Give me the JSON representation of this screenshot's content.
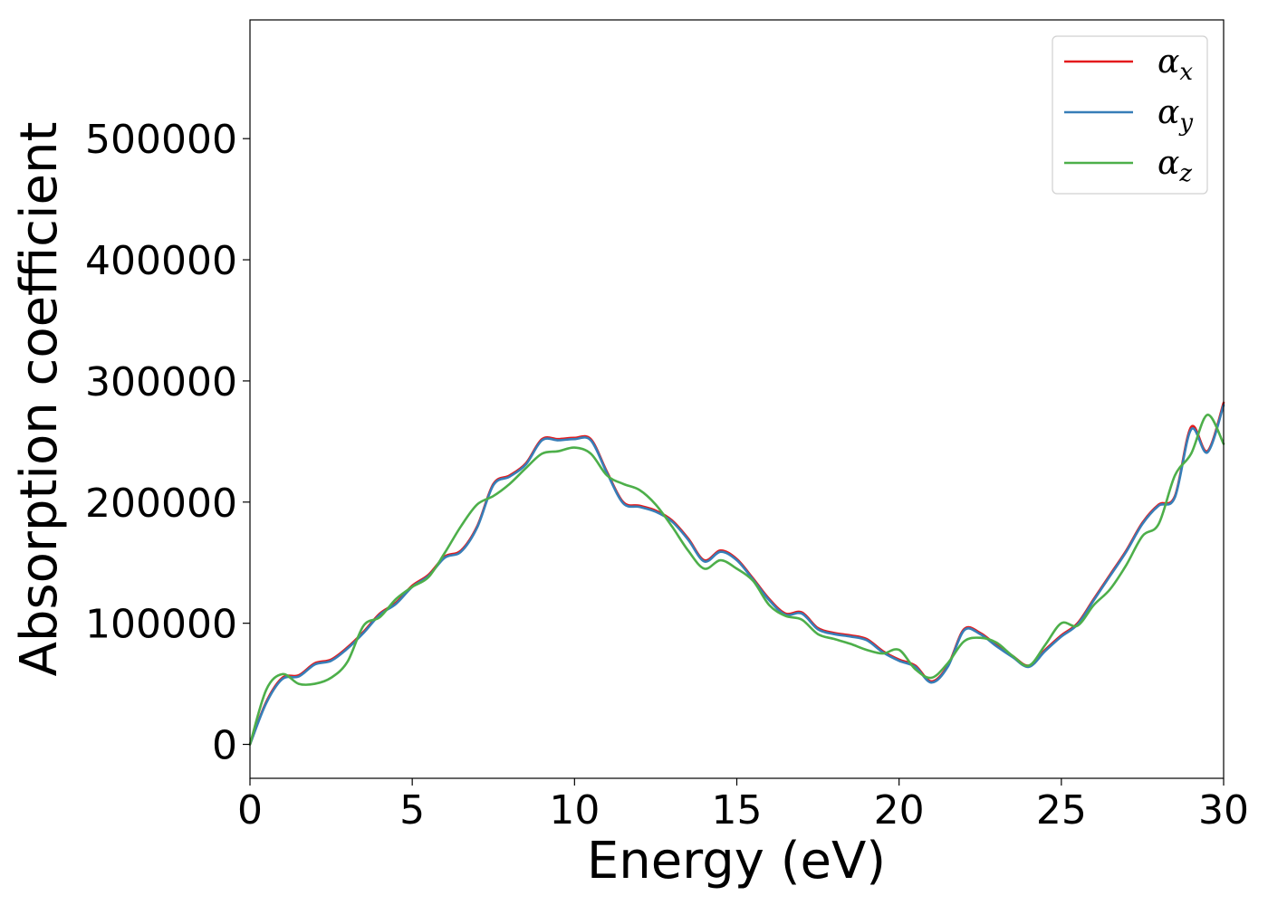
{
  "chart_data": {
    "type": "line",
    "title": "",
    "xlabel": "Energy (eV)",
    "ylabel": "Absorption coefficient",
    "xlim": [
      0,
      30
    ],
    "ylim": [
      -28000,
      598000
    ],
    "xticks": [
      0,
      5,
      10,
      15,
      20,
      25,
      30
    ],
    "yticks": [
      0,
      100000,
      200000,
      300000,
      400000,
      500000
    ],
    "grid": false,
    "legend_position": "top-right",
    "series": [
      {
        "name": "α",
        "subscript": "x",
        "color": "#e41a1c",
        "x": [
          0,
          0.5,
          1,
          1.5,
          2,
          2.5,
          3,
          3.5,
          4,
          4.5,
          5,
          5.5,
          6,
          6.5,
          7,
          7.5,
          8,
          8.5,
          9,
          9.5,
          10,
          10.5,
          11,
          11.5,
          12,
          12.5,
          13,
          13.5,
          14,
          14.5,
          15,
          15.5,
          16,
          16.5,
          17,
          17.5,
          18,
          18.5,
          19,
          19.5,
          20,
          20.5,
          21,
          21.5,
          22,
          22.5,
          23,
          23.5,
          24,
          24.5,
          25,
          25.5,
          26,
          26.5,
          27,
          27.5,
          28,
          28.5,
          29,
          29.5,
          30
        ],
        "y": [
          0,
          35000,
          55000,
          57000,
          67000,
          70000,
          80000,
          93000,
          108000,
          117000,
          131000,
          140000,
          155000,
          160000,
          180000,
          215000,
          222000,
          232000,
          252000,
          252000,
          253000,
          252000,
          225000,
          200000,
          197000,
          193000,
          185000,
          170000,
          152000,
          160000,
          153000,
          137000,
          120000,
          108000,
          109000,
          96000,
          92000,
          90000,
          87000,
          77000,
          70000,
          65000,
          52000,
          65000,
          95000,
          92000,
          82000,
          73000,
          65000,
          78000,
          90000,
          100000,
          120000,
          140000,
          160000,
          183000,
          198000,
          205000,
          262000,
          242000,
          282000
        ]
      },
      {
        "name": "α",
        "subscript": "y",
        "color": "#377eb8",
        "x": [
          0,
          0.5,
          1,
          1.5,
          2,
          2.5,
          3,
          3.5,
          4,
          4.5,
          5,
          5.5,
          6,
          6.5,
          7,
          7.5,
          8,
          8.5,
          9,
          9.5,
          10,
          10.5,
          11,
          11.5,
          12,
          12.5,
          13,
          13.5,
          14,
          14.5,
          15,
          15.5,
          16,
          16.5,
          17,
          17.5,
          18,
          18.5,
          19,
          19.5,
          20,
          20.5,
          21,
          21.5,
          22,
          22.5,
          23,
          23.5,
          24,
          24.5,
          25,
          25.5,
          26,
          26.5,
          27,
          27.5,
          28,
          28.5,
          29,
          29.5,
          30
        ],
        "y": [
          0,
          34000,
          54000,
          56000,
          66000,
          69000,
          79000,
          92000,
          107000,
          116000,
          130000,
          139000,
          154000,
          159000,
          179000,
          214000,
          221000,
          231000,
          251000,
          251000,
          252000,
          251000,
          224000,
          199000,
          196000,
          192000,
          184000,
          169000,
          151000,
          159000,
          152000,
          136000,
          119000,
          107000,
          108000,
          95000,
          91000,
          89000,
          86000,
          76000,
          69000,
          64000,
          51000,
          64000,
          94000,
          91000,
          81000,
          72000,
          64000,
          77000,
          89000,
          99000,
          119000,
          139000,
          159000,
          182000,
          197000,
          204000,
          260000,
          241000,
          280000
        ]
      },
      {
        "name": "α",
        "subscript": "z",
        "color": "#4daf4a",
        "x": [
          0,
          0.5,
          1,
          1.5,
          2,
          2.5,
          3,
          3.5,
          4,
          4.5,
          5,
          5.5,
          6,
          6.5,
          7,
          7.5,
          8,
          8.5,
          9,
          9.5,
          10,
          10.5,
          11,
          11.5,
          12,
          12.5,
          13,
          13.5,
          14,
          14.5,
          15,
          15.5,
          16,
          16.5,
          17,
          17.5,
          18,
          18.5,
          19,
          19.5,
          20,
          20.5,
          21,
          21.5,
          22,
          22.5,
          23,
          23.5,
          24,
          24.5,
          25,
          25.5,
          26,
          26.5,
          27,
          27.5,
          28,
          28.5,
          29,
          29.5,
          30
        ],
        "y": [
          0,
          45000,
          58000,
          50000,
          50000,
          55000,
          68000,
          98000,
          105000,
          120000,
          130000,
          138000,
          158000,
          180000,
          198000,
          205000,
          215000,
          228000,
          240000,
          242000,
          245000,
          240000,
          222000,
          215000,
          210000,
          198000,
          180000,
          160000,
          145000,
          152000,
          145000,
          135000,
          115000,
          106000,
          103000,
          91000,
          87000,
          83000,
          78000,
          75000,
          78000,
          62000,
          55000,
          67000,
          85000,
          88000,
          84000,
          73000,
          65000,
          82000,
          100000,
          98000,
          115000,
          128000,
          148000,
          172000,
          182000,
          222000,
          240000,
          272000,
          248000
        ]
      }
    ]
  }
}
